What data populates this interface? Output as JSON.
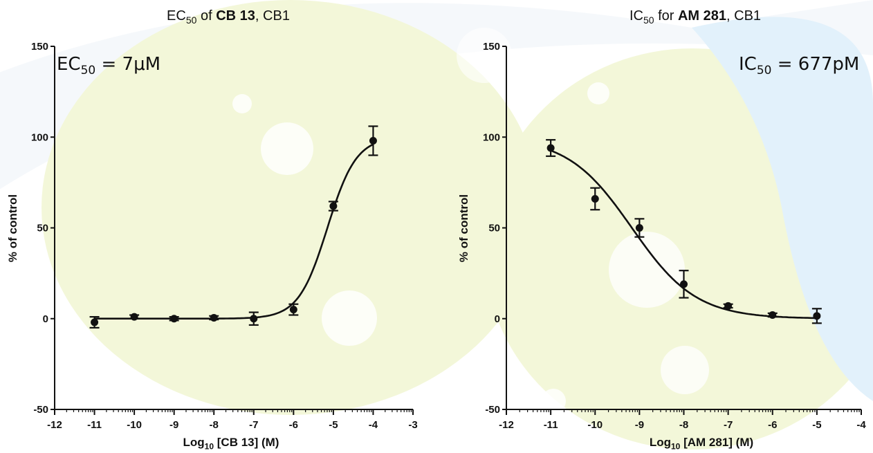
{
  "colors": {
    "line": "#111111",
    "marker": "#111111",
    "background_blob": "#f3f7d9",
    "background_blue": "#e2f1fb"
  },
  "chart_data": [
    {
      "type": "scatter",
      "title": {
        "prefix": "EC",
        "sub": "50",
        "mid": " of ",
        "bold": "CB 13",
        "suffix": ", CB1"
      },
      "xlabel": {
        "prefix": "Log",
        "sub": "10",
        "suffix": " [CB 13] (M)"
      },
      "ylabel": "% of control",
      "annotation": {
        "prefix": "EC",
        "sub": "50",
        "suffix": " = 7μM"
      },
      "xlim": [
        -12,
        -3
      ],
      "ylim": [
        -50,
        150
      ],
      "x_ticks": [
        -12,
        -11,
        -10,
        -9,
        -8,
        -7,
        -6,
        -5,
        -4,
        -3
      ],
      "y_ticks": [
        -50,
        0,
        50,
        100,
        150
      ],
      "grid": false,
      "points": [
        {
          "x": -11,
          "y": -2,
          "err": 3
        },
        {
          "x": -10,
          "y": 1,
          "err": 1
        },
        {
          "x": -9,
          "y": 0,
          "err": 1
        },
        {
          "x": -8,
          "y": 0.5,
          "err": 1
        },
        {
          "x": -7,
          "y": 0,
          "err": 3.5
        },
        {
          "x": -6,
          "y": 5,
          "err": 3
        },
        {
          "x": -5,
          "y": 62,
          "err": 2.5
        },
        {
          "x": -4,
          "y": 98,
          "err": 8
        }
      ],
      "fit": {
        "model": "sigmoid",
        "bottom": 0,
        "top": 100,
        "logEC50": -5.15,
        "hill": 1.2,
        "xmin": -11,
        "xmax": -4
      }
    },
    {
      "type": "scatter",
      "title": {
        "prefix": "IC",
        "sub": "50",
        "mid": " for ",
        "bold": "AM 281",
        "suffix": ", CB1"
      },
      "xlabel": {
        "prefix": "Log",
        "sub": "10",
        "suffix": " [AM 281] (M)"
      },
      "ylabel": "% of control",
      "annotation": {
        "prefix": "IC",
        "sub": "50",
        "suffix": " = 677pM"
      },
      "xlim": [
        -12,
        -4
      ],
      "ylim": [
        -50,
        150
      ],
      "x_ticks": [
        -12,
        -11,
        -10,
        -9,
        -8,
        -7,
        -6,
        -5,
        -4
      ],
      "y_ticks": [
        -50,
        0,
        50,
        100,
        150
      ],
      "grid": false,
      "points": [
        {
          "x": -11,
          "y": 94,
          "err": 4.5
        },
        {
          "x": -10,
          "y": 66,
          "err": 6
        },
        {
          "x": -9,
          "y": 50,
          "err": 5
        },
        {
          "x": -8,
          "y": 19,
          "err": 7.5
        },
        {
          "x": -7,
          "y": 7,
          "err": 1
        },
        {
          "x": -6,
          "y": 2,
          "err": 1
        },
        {
          "x": -5,
          "y": 1.5,
          "err": 4
        }
      ],
      "fit": {
        "model": "sigmoid",
        "bottom": 0,
        "top": 100,
        "logEC50": -9.17,
        "hill": -0.6,
        "xmin": -11,
        "xmax": -5
      }
    }
  ]
}
